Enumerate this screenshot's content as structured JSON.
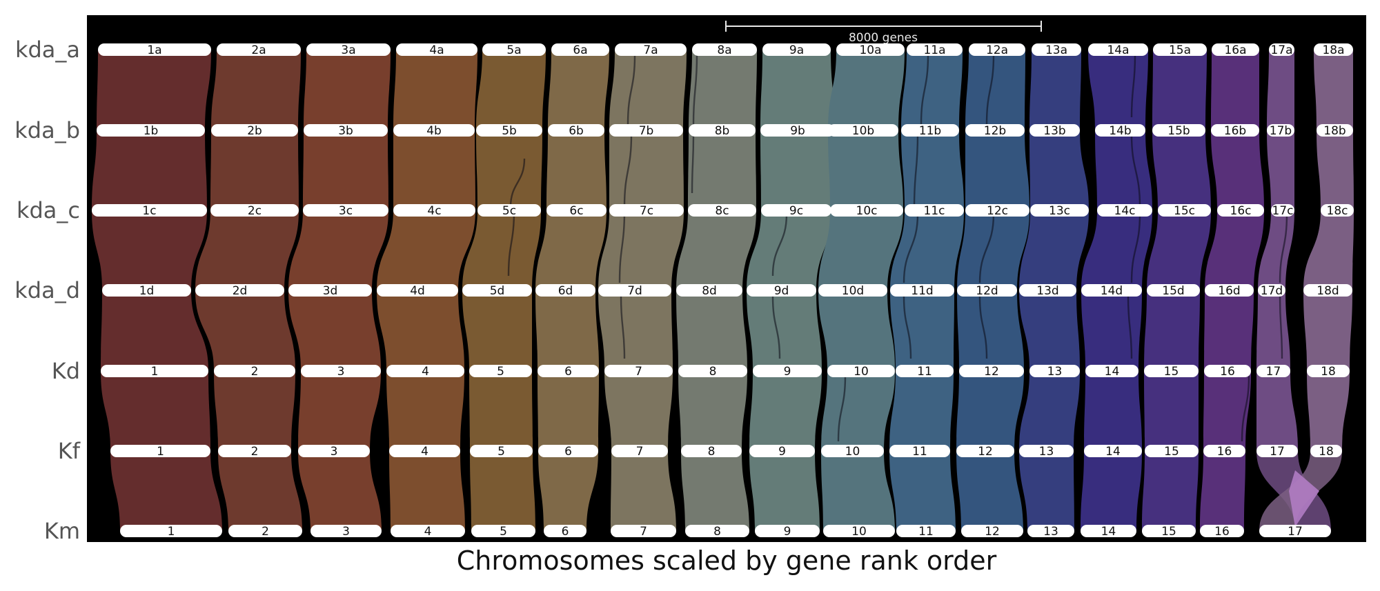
{
  "rows": [
    "kda_a",
    "kda_b",
    "kda_c",
    "kda_d",
    "Kd",
    "Kf",
    "Km"
  ],
  "x_label": "Chromosomes scaled by gene rank order",
  "scale_bar": {
    "label": "8000 genes",
    "genes": 8000
  },
  "colors": {
    "background": "#000000",
    "chromosome_fill": "#ffffff",
    "palette": [
      "#642d2d",
      "#6e3a2e",
      "#783f2d",
      "#7d4e2e",
      "#7a5a32",
      "#7f6948",
      "#7d7560",
      "#747a70",
      "#647c78",
      "#55747d",
      "#3e6282",
      "#34557e",
      "#353e7e",
      "#382d7e",
      "#46307e",
      "#583079",
      "#6e4c83",
      "#7b5f83"
    ]
  },
  "genomes": [
    {
      "name": "kda_a",
      "chromosomes": [
        "1a",
        "2a",
        "3a",
        "4a",
        "5a",
        "6a",
        "7a",
        "8a",
        "9a",
        "10a",
        "11a",
        "12a",
        "13a",
        "14a",
        "15a",
        "16a",
        "17a",
        "18a"
      ]
    },
    {
      "name": "kda_b",
      "chromosomes": [
        "1b",
        "2b",
        "3b",
        "4b",
        "5b",
        "6b",
        "7b",
        "8b",
        "9b",
        "10b",
        "11b",
        "12b",
        "13b",
        "14b",
        "15b",
        "16b",
        "17b",
        "18b"
      ]
    },
    {
      "name": "kda_c",
      "chromosomes": [
        "1c",
        "2c",
        "3c",
        "4c",
        "5c",
        "6c",
        "7c",
        "8c",
        "9c",
        "10c",
        "11c",
        "12c",
        "13c",
        "14c",
        "15c",
        "16c",
        "17c",
        "18c"
      ]
    },
    {
      "name": "kda_d",
      "chromosomes": [
        "1d",
        "2d",
        "3d",
        "4d",
        "5d",
        "6d",
        "7d",
        "8d",
        "9d",
        "10d",
        "11d",
        "12d",
        "13d",
        "14d",
        "15d",
        "16d",
        "17d",
        "18d"
      ]
    },
    {
      "name": "Kd",
      "chromosomes": [
        "1",
        "2",
        "3",
        "4",
        "5",
        "6",
        "7",
        "8",
        "9",
        "10",
        "11",
        "12",
        "13",
        "14",
        "15",
        "16",
        "17",
        "18"
      ]
    },
    {
      "name": "Kf",
      "chromosomes": [
        "1",
        "2",
        "3",
        "4",
        "5",
        "6",
        "7",
        "8",
        "9",
        "10",
        "11",
        "12",
        "13",
        "14",
        "15",
        "16",
        "17",
        "18"
      ]
    },
    {
      "name": "Km",
      "chromosomes": [
        "1",
        "2",
        "3",
        "4",
        "5",
        "6",
        "7",
        "8",
        "9",
        "10",
        "11",
        "12",
        "13",
        "14",
        "15",
        "16",
        "17"
      ]
    }
  ]
}
